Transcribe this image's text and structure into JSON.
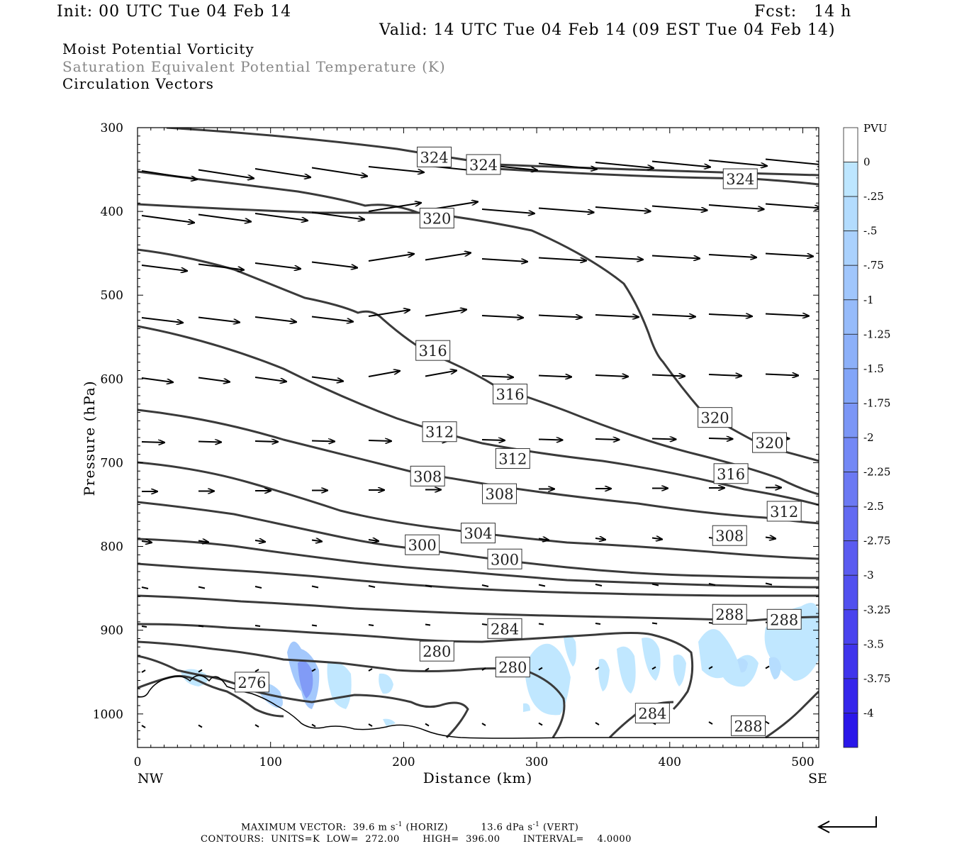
{
  "header": {
    "init": "Init: 00 UTC Tue 04 Feb 14",
    "fcst": "Fcst:   14 h",
    "valid": "Valid: 14 UTC Tue 04 Feb 14 (09 EST Tue 04 Feb 14)"
  },
  "titles": [
    {
      "text": "Moist Potential Vorticity",
      "color": "#000000"
    },
    {
      "text": "Saturation Equivalent Potential Temperature (K)",
      "color": "#888888"
    },
    {
      "text": "Circulation Vectors",
      "color": "#000000"
    }
  ],
  "footer": {
    "max_vector_label": "MAXIMUM VECTOR:",
    "max_vector_horiz": "39.6 m s",
    "horiz_tag": "(HORIZ)",
    "max_vector_vert": "13.6 dPa s",
    "vert_tag": "(VERT)",
    "exp": "-1",
    "contours": "CONTOURS:  UNITS=K  LOW=  272.00       HIGH=  396.00       INTERVAL=    4.0000"
  },
  "chart_data": {
    "type": "cross-section",
    "xlabel": "Distance (km)",
    "ylabel": "Pressure (hPa)",
    "xlim": [
      0,
      512
    ],
    "ylim": [
      1040,
      300
    ],
    "x_ticks": [
      0,
      100,
      200,
      300,
      400,
      500
    ],
    "y_ticks": [
      300,
      400,
      500,
      600,
      700,
      800,
      900,
      1000
    ],
    "x_end_labels": {
      "left": "NW",
      "right": "SE"
    },
    "colorbar": {
      "unit": "PVU",
      "labels": [
        "0",
        "-.25",
        "-.5",
        "-.75",
        "-1",
        "-1.25",
        "-1.5",
        "-1.75",
        "-2",
        "-2.25",
        "-2.5",
        "-2.75",
        "-3",
        "-3.25",
        "-3.5",
        "-3.75",
        "-4"
      ],
      "colors": [
        "#ffffff",
        "#ffffff",
        "#bde6ff",
        "#b3dcfe",
        "#aad1fd",
        "#a0c6fc",
        "#96bbfa",
        "#8cb0f9",
        "#82a5f8",
        "#7b96f6",
        "#7388f5",
        "#6b79f3",
        "#626af2",
        "#5a5bf0",
        "#5150ef",
        "#4943ee",
        "#3f34ec",
        "#3526eb",
        "#2a17e9",
        "#1f0ae8"
      ]
    },
    "contour_labels": [
      {
        "text": "324",
        "x": 223,
        "p": 335
      },
      {
        "text": "324",
        "x": 260,
        "p": 344
      },
      {
        "text": "324",
        "x": 453,
        "p": 361
      },
      {
        "text": "320",
        "x": 225,
        "p": 408
      },
      {
        "text": "316",
        "x": 222,
        "p": 566
      },
      {
        "text": "316",
        "x": 280,
        "p": 618
      },
      {
        "text": "320",
        "x": 434,
        "p": 646
      },
      {
        "text": "320",
        "x": 475,
        "p": 676
      },
      {
        "text": "312",
        "x": 227,
        "p": 663
      },
      {
        "text": "312",
        "x": 282,
        "p": 695
      },
      {
        "text": "316",
        "x": 446,
        "p": 713
      },
      {
        "text": "308",
        "x": 218,
        "p": 716
      },
      {
        "text": "308",
        "x": 272,
        "p": 737
      },
      {
        "text": "312",
        "x": 486,
        "p": 758
      },
      {
        "text": "304",
        "x": 256,
        "p": 784
      },
      {
        "text": "300",
        "x": 214,
        "p": 798
      },
      {
        "text": "308",
        "x": 445,
        "p": 787
      },
      {
        "text": "300",
        "x": 276,
        "p": 815
      },
      {
        "text": "288",
        "x": 445,
        "p": 881
      },
      {
        "text": "288",
        "x": 486,
        "p": 887
      },
      {
        "text": "284",
        "x": 276,
        "p": 898
      },
      {
        "text": "280",
        "x": 225,
        "p": 925
      },
      {
        "text": "280",
        "x": 282,
        "p": 944
      },
      {
        "text": "276",
        "x": 86,
        "p": 962
      },
      {
        "text": "284",
        "x": 387,
        "p": 999
      },
      {
        "text": "288",
        "x": 459,
        "p": 1014
      }
    ]
  }
}
